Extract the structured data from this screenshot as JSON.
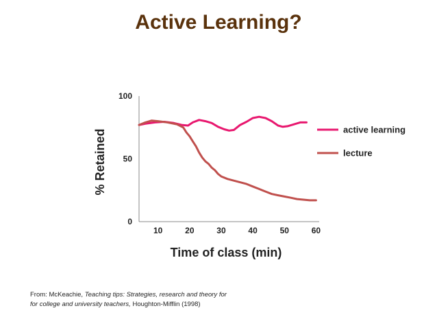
{
  "slide": {
    "title": "Active Learning?",
    "citation": {
      "prefix": "From: McKeachie, ",
      "book_title_line1": "Teaching tips: Strategies, research and theory for",
      "book_title_line2": "for college and university teachers,",
      "suffix": " Houghton-Mifflin (1998)"
    }
  },
  "chart_data": {
    "type": "line",
    "title": "",
    "xlabel": "Time of class (min)",
    "ylabel": "% Retained",
    "xlim": [
      4,
      61
    ],
    "ylim": [
      0,
      100
    ],
    "xticks": [
      10,
      20,
      30,
      40,
      50,
      60
    ],
    "yticks": [
      0,
      50,
      100
    ],
    "grid": false,
    "legend_position": "right",
    "series": [
      {
        "name": "active learning",
        "color": "#e8186f",
        "points": [
          [
            4,
            77
          ],
          [
            6,
            78
          ],
          [
            9,
            79
          ],
          [
            12,
            79.5
          ],
          [
            15,
            78.5
          ],
          [
            17.5,
            77
          ],
          [
            19.5,
            76.5
          ],
          [
            21,
            79
          ],
          [
            23,
            81
          ],
          [
            25,
            80
          ],
          [
            27,
            78.5
          ],
          [
            29,
            75.5
          ],
          [
            31,
            73.5
          ],
          [
            32.5,
            72.5
          ],
          [
            34,
            73
          ],
          [
            36,
            77
          ],
          [
            38,
            79.5
          ],
          [
            40,
            82.5
          ],
          [
            42,
            83.5
          ],
          [
            44,
            82.5
          ],
          [
            46,
            80
          ],
          [
            48,
            76.5
          ],
          [
            49.5,
            75.5
          ],
          [
            51,
            76
          ],
          [
            53,
            77.5
          ],
          [
            55,
            79
          ],
          [
            57,
            79
          ]
        ]
      },
      {
        "name": "lecture",
        "color": "#c0504d",
        "points": [
          [
            4,
            77
          ],
          [
            6,
            79
          ],
          [
            8,
            80.5
          ],
          [
            10,
            80
          ],
          [
            13,
            79
          ],
          [
            16,
            77.5
          ],
          [
            18,
            75
          ],
          [
            19,
            71
          ],
          [
            20,
            68
          ],
          [
            21,
            64
          ],
          [
            22,
            60
          ],
          [
            23,
            55
          ],
          [
            24,
            51
          ],
          [
            25,
            48
          ],
          [
            26,
            46
          ],
          [
            27,
            43
          ],
          [
            28,
            41
          ],
          [
            29,
            38
          ],
          [
            30,
            36
          ],
          [
            32,
            34
          ],
          [
            35,
            32
          ],
          [
            38,
            30
          ],
          [
            40,
            28
          ],
          [
            42,
            26
          ],
          [
            44,
            24
          ],
          [
            46,
            22
          ],
          [
            48,
            21
          ],
          [
            50,
            20
          ],
          [
            52,
            19
          ],
          [
            54,
            18
          ],
          [
            56,
            17.5
          ],
          [
            58,
            17
          ],
          [
            60,
            17
          ]
        ]
      }
    ]
  }
}
